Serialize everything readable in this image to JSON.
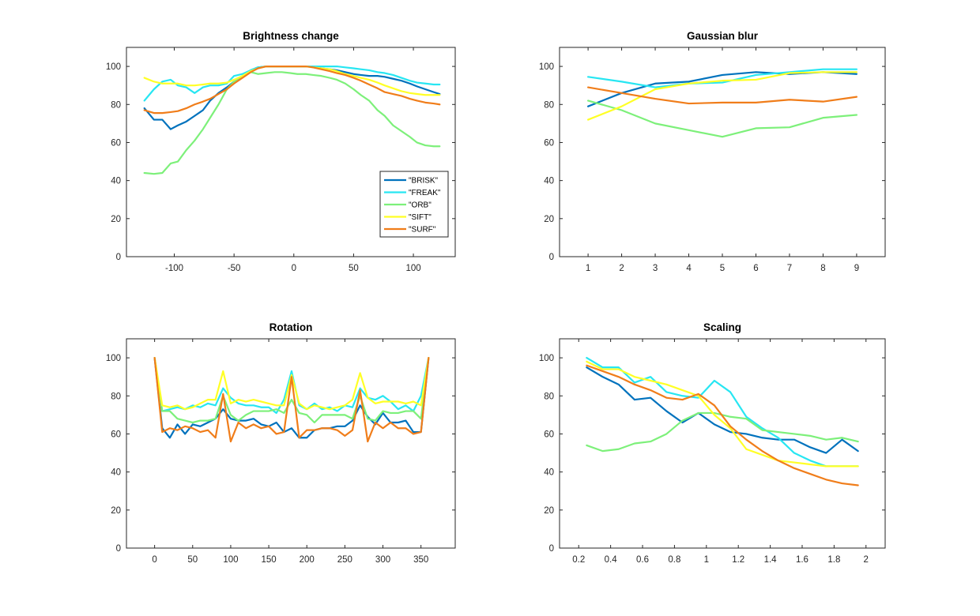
{
  "colors": {
    "BRISK": "#0072BD",
    "FREAK": "#27E6F2",
    "ORB": "#7DF07A",
    "SIFT": "#FFFF26",
    "SURF": "#F07D1A"
  },
  "legend": {
    "placement": "inside-lower-right of first subplot",
    "entries": [
      "\"BRISK\"",
      "\"FREAK\"",
      "\"ORB\"",
      "\"SIFT\"",
      "\"SURF\""
    ]
  },
  "chart_data": [
    {
      "type": "line",
      "title": "Brightness change",
      "xlim": [
        -140,
        135
      ],
      "ylim": [
        0,
        110
      ],
      "xticks": [
        -100,
        -50,
        0,
        50,
        100
      ],
      "xtick_labels": [
        "-100",
        "-50",
        "0",
        "50",
        "100"
      ],
      "yticks": [
        0,
        20,
        40,
        60,
        80,
        100
      ],
      "ytick_labels": [
        "0",
        "20",
        "40",
        "60",
        "80",
        "100"
      ],
      "grid": false,
      "x": [
        -125,
        -117,
        -110,
        -103,
        -97,
        -90,
        -83,
        -76,
        -70,
        -63,
        -56,
        -50,
        -43,
        -36,
        -30,
        -23,
        -16,
        -10,
        -3,
        3,
        10,
        16,
        23,
        30,
        36,
        43,
        50,
        56,
        63,
        70,
        76,
        83,
        90,
        97,
        103,
        110,
        117,
        122
      ],
      "series": [
        {
          "name": "\"BRISK\"",
          "values": [
            78,
            72,
            72,
            67,
            69,
            71,
            74,
            77,
            82,
            86,
            89,
            92,
            95,
            98,
            99.5,
            100,
            100,
            100,
            100,
            100,
            100,
            100,
            99,
            98.5,
            98,
            97,
            96,
            95.5,
            95,
            95,
            94.5,
            93.5,
            92.5,
            91,
            89.5,
            88,
            86.5,
            85.5
          ]
        },
        {
          "name": "\"FREAK\"",
          "values": [
            82,
            88,
            92,
            93,
            90,
            89,
            86,
            89,
            90,
            90,
            91,
            95,
            96,
            98,
            99.5,
            100,
            100,
            100,
            100,
            100,
            100,
            100,
            100,
            100,
            100,
            99.5,
            99,
            98.5,
            98,
            97,
            96.5,
            95.5,
            94,
            92.5,
            91.5,
            91,
            90.5,
            90.5
          ]
        },
        {
          "name": "\"ORB\"",
          "values": [
            44,
            43.5,
            44,
            49,
            50,
            56,
            61,
            67,
            73,
            80,
            88,
            92,
            95,
            97,
            96,
            96.5,
            97,
            97,
            96.5,
            96,
            96,
            95.5,
            95,
            94,
            93,
            91,
            88,
            85,
            82,
            77,
            74,
            69,
            66,
            63,
            60,
            58.5,
            58,
            58
          ]
        },
        {
          "name": "\"SIFT\"",
          "values": [
            94,
            92,
            91,
            91,
            91,
            90,
            90,
            90.5,
            91,
            91,
            91.5,
            93,
            95,
            97.5,
            99,
            100,
            100,
            100,
            100,
            100,
            100,
            99.5,
            99,
            98.5,
            97.5,
            96,
            95,
            94,
            93,
            91.5,
            90,
            88.5,
            87,
            86,
            85.5,
            85,
            85,
            85
          ]
        },
        {
          "name": "\"SURF\"",
          "values": [
            77,
            75.5,
            75.5,
            76,
            76.5,
            78,
            80,
            81.5,
            83,
            85.5,
            88,
            91,
            94,
            97,
            99,
            100,
            100,
            100,
            100,
            100,
            100,
            99.5,
            98.5,
            97.5,
            96.5,
            95.5,
            94,
            92.5,
            90.5,
            88.5,
            86.5,
            85.5,
            84.5,
            83,
            82,
            81,
            80.5,
            80
          ]
        }
      ]
    },
    {
      "type": "line",
      "title": "Gaussian blur",
      "xlim": [
        0.15,
        9.85
      ],
      "ylim": [
        0,
        110
      ],
      "xticks": [
        1,
        2,
        3,
        4,
        5,
        6,
        7,
        8,
        9
      ],
      "xtick_labels": [
        "1",
        "2",
        "3",
        "4",
        "5",
        "6",
        "7",
        "8",
        "9"
      ],
      "yticks": [
        0,
        20,
        40,
        60,
        80,
        100
      ],
      "ytick_labels": [
        "0",
        "20",
        "40",
        "60",
        "80",
        "100"
      ],
      "grid": false,
      "x": [
        1,
        2,
        3,
        4,
        5,
        6,
        7,
        8,
        9
      ],
      "series": [
        {
          "name": "\"BRISK\"",
          "values": [
            79,
            86,
            91,
            92,
            95.5,
            97,
            96,
            97,
            96
          ]
        },
        {
          "name": "\"FREAK\"",
          "values": [
            94.5,
            92,
            89,
            91,
            91.5,
            95.5,
            97,
            98.5,
            98.5
          ]
        },
        {
          "name": "\"ORB\"",
          "values": [
            82,
            77,
            70,
            66.5,
            63,
            67.5,
            68,
            73,
            74.5
          ]
        },
        {
          "name": "\"SIFT\"",
          "values": [
            72,
            79,
            88,
            91,
            92.5,
            93,
            96.5,
            97,
            97
          ]
        },
        {
          "name": "\"SURF\"",
          "values": [
            89,
            86,
            83,
            80.5,
            81,
            81,
            82.5,
            81.5,
            84
          ]
        }
      ]
    },
    {
      "type": "line",
      "title": "Rotation",
      "xlim": [
        -37,
        395
      ],
      "ylim": [
        0,
        110
      ],
      "xticks": [
        0,
        50,
        100,
        150,
        200,
        250,
        300,
        350
      ],
      "xtick_labels": [
        "0",
        "50",
        "100",
        "150",
        "200",
        "250",
        "300",
        "350"
      ],
      "yticks": [
        0,
        20,
        40,
        60,
        80,
        100
      ],
      "ytick_labels": [
        "0",
        "20",
        "40",
        "60",
        "80",
        "100"
      ],
      "grid": false,
      "x": [
        0,
        10,
        20,
        30,
        40,
        50,
        60,
        70,
        80,
        90,
        100,
        110,
        120,
        130,
        140,
        150,
        160,
        170,
        180,
        190,
        200,
        210,
        220,
        230,
        240,
        250,
        260,
        270,
        280,
        290,
        300,
        310,
        320,
        330,
        340,
        350,
        360
      ],
      "series": [
        {
          "name": "\"BRISK\"",
          "values": [
            100,
            63,
            58,
            65,
            60,
            65,
            64,
            66,
            68,
            73,
            68,
            67,
            67,
            68,
            65,
            64,
            66,
            61,
            63,
            58,
            58,
            62,
            63,
            63,
            64,
            64,
            67,
            75,
            69,
            65,
            71,
            66,
            66,
            67,
            61,
            61,
            100
          ]
        },
        {
          "name": "\"FREAK\"",
          "values": [
            100,
            72,
            73,
            74,
            73,
            75,
            74,
            76,
            75,
            84,
            79,
            76,
            75,
            75,
            74,
            74,
            71,
            78,
            93,
            75,
            73,
            76,
            73,
            74,
            72,
            75,
            74,
            84,
            79,
            78,
            80,
            77,
            73,
            75,
            72,
            80,
            100
          ]
        },
        {
          "name": "\"ORB\"",
          "values": [
            100,
            72,
            72,
            68,
            67,
            66,
            67,
            67,
            68,
            80,
            70,
            67,
            70,
            72,
            72,
            72,
            73,
            71,
            78,
            71,
            70,
            66,
            70,
            70,
            70,
            70,
            68,
            80,
            68,
            67,
            72,
            71,
            71,
            72,
            72,
            68,
            100
          ]
        },
        {
          "name": "\"SIFT\"",
          "values": [
            100,
            75,
            74,
            75,
            73,
            74,
            76,
            78,
            78,
            93,
            76,
            78,
            77,
            78,
            77,
            76,
            75,
            75,
            91,
            76,
            73,
            75,
            74,
            73,
            74,
            75,
            78,
            92,
            79,
            76,
            77,
            77,
            77,
            76,
            77,
            75,
            100
          ]
        },
        {
          "name": "\"SURF\"",
          "values": [
            100,
            61,
            63,
            62,
            64,
            63,
            61,
            62,
            58,
            81,
            56,
            66,
            63,
            65,
            63,
            64,
            60,
            61,
            90,
            58,
            62,
            62,
            63,
            63,
            62,
            59,
            62,
            83,
            56,
            66,
            63,
            66,
            63,
            63,
            60,
            61,
            100
          ]
        }
      ]
    },
    {
      "type": "line",
      "title": "Scaling",
      "xlim": [
        0.08,
        2.12
      ],
      "ylim": [
        0,
        110
      ],
      "xticks": [
        0.2,
        0.4,
        0.6,
        0.8,
        1,
        1.2,
        1.4,
        1.6,
        1.8,
        2
      ],
      "xtick_labels": [
        "0.2",
        "0.4",
        "0.6",
        "0.8",
        "1",
        "1.2",
        "1.4",
        "1.6",
        "1.8",
        "2"
      ],
      "yticks": [
        0,
        20,
        40,
        60,
        80,
        100
      ],
      "ytick_labels": [
        "0",
        "20",
        "40",
        "60",
        "80",
        "100"
      ],
      "grid": false,
      "x": [
        0.25,
        0.35,
        0.45,
        0.55,
        0.65,
        0.75,
        0.85,
        0.95,
        1.05,
        1.15,
        1.25,
        1.35,
        1.45,
        1.55,
        1.65,
        1.75,
        1.85,
        1.95
      ],
      "series": [
        {
          "name": "\"BRISK\"",
          "values": [
            95,
            90,
            86,
            78,
            79,
            72,
            66,
            71,
            65,
            61,
            60,
            58,
            57,
            57,
            53,
            50,
            57,
            51
          ]
        },
        {
          "name": "\"FREAK\"",
          "values": [
            100,
            95,
            95,
            87,
            90,
            82,
            80,
            79,
            88,
            82,
            69,
            63,
            58,
            50,
            46,
            43,
            43,
            43
          ]
        },
        {
          "name": "\"ORB\"",
          "values": [
            54,
            51,
            52,
            55,
            56,
            60,
            67,
            71,
            71,
            69,
            68,
            62,
            61,
            60,
            59,
            57,
            58,
            56
          ]
        },
        {
          "name": "\"SIFT\"",
          "values": [
            98,
            94,
            94,
            90,
            88,
            86,
            83,
            80,
            70,
            63,
            52,
            49,
            46,
            45,
            44,
            43,
            43,
            43
          ]
        },
        {
          "name": "\"SURF\"",
          "values": [
            96,
            93,
            90,
            86,
            83,
            79,
            78,
            81,
            75,
            64,
            57,
            51,
            46,
            42,
            39,
            36,
            34,
            33
          ]
        }
      ]
    }
  ]
}
